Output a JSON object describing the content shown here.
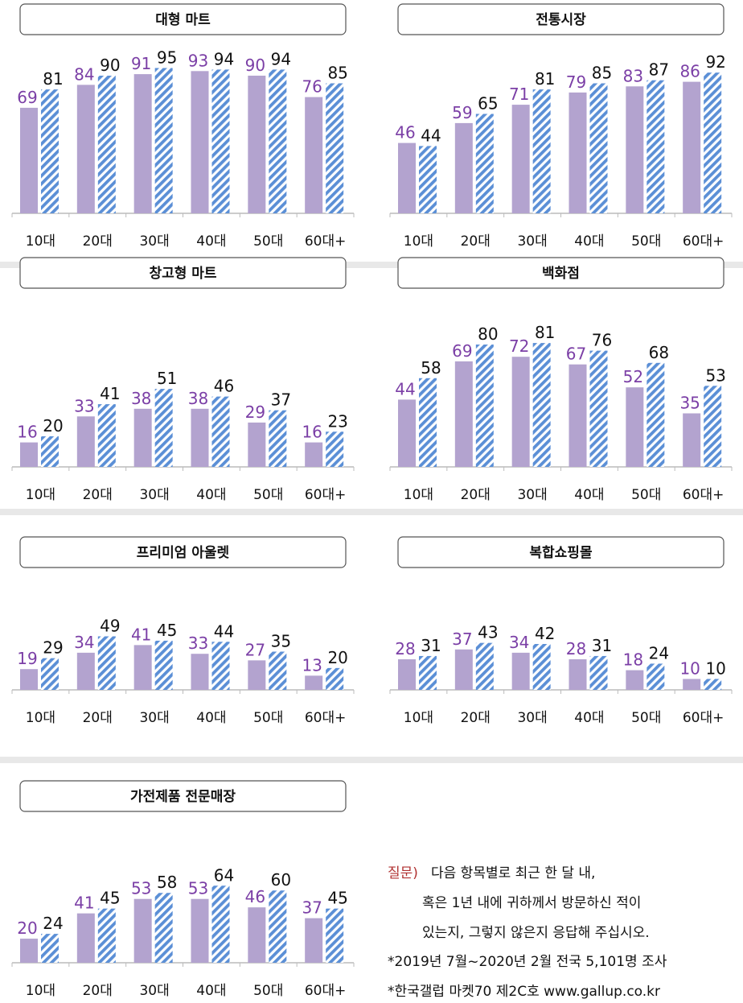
{
  "chart_data": [
    {
      "type": "bar",
      "title": "대형 마트",
      "categories": [
        "10대",
        "20대",
        "30대",
        "40대",
        "50대",
        "60대+"
      ],
      "ylim": [
        0,
        100
      ],
      "series": [
        {
          "color": "#b3a3cf",
          "label_color": "#7b3fa6",
          "values": [
            69,
            84,
            91,
            93,
            90,
            76
          ]
        },
        {
          "color": "#5b8fd6",
          "hatched": true,
          "label_color": "#111111",
          "values": [
            81,
            90,
            95,
            94,
            94,
            85
          ]
        }
      ]
    },
    {
      "type": "bar",
      "title": "전통시장",
      "categories": [
        "10대",
        "20대",
        "30대",
        "40대",
        "50대",
        "60대+"
      ],
      "ylim": [
        0,
        100
      ],
      "series": [
        {
          "color": "#b3a3cf",
          "label_color": "#7b3fa6",
          "values": [
            46,
            59,
            71,
            79,
            83,
            86
          ]
        },
        {
          "color": "#5b8fd6",
          "hatched": true,
          "label_color": "#111111",
          "values": [
            44,
            65,
            81,
            85,
            87,
            92
          ]
        }
      ]
    },
    {
      "type": "bar",
      "title": "창고형 마트",
      "categories": [
        "10대",
        "20대",
        "30대",
        "40대",
        "50대",
        "60대+"
      ],
      "ylim": [
        0,
        100
      ],
      "series": [
        {
          "color": "#b3a3cf",
          "label_color": "#7b3fa6",
          "values": [
            16,
            33,
            38,
            38,
            29,
            16
          ]
        },
        {
          "color": "#5b8fd6",
          "hatched": true,
          "label_color": "#111111",
          "values": [
            20,
            41,
            51,
            46,
            37,
            23
          ]
        }
      ]
    },
    {
      "type": "bar",
      "title": "백화점",
      "categories": [
        "10대",
        "20대",
        "30대",
        "40대",
        "50대",
        "60대+"
      ],
      "ylim": [
        0,
        100
      ],
      "series": [
        {
          "color": "#b3a3cf",
          "label_color": "#7b3fa6",
          "values": [
            44,
            69,
            72,
            67,
            52,
            35
          ]
        },
        {
          "color": "#5b8fd6",
          "hatched": true,
          "label_color": "#111111",
          "values": [
            58,
            80,
            81,
            76,
            68,
            53
          ]
        }
      ]
    },
    {
      "type": "bar",
      "title": "프리미엄 아울렛",
      "categories": [
        "10대",
        "20대",
        "30대",
        "40대",
        "50대",
        "60대+"
      ],
      "ylim": [
        0,
        140
      ],
      "series": [
        {
          "color": "#b3a3cf",
          "label_color": "#7b3fa6",
          "values": [
            19,
            34,
            41,
            33,
            27,
            13
          ]
        },
        {
          "color": "#5b8fd6",
          "hatched": true,
          "label_color": "#111111",
          "values": [
            29,
            49,
            45,
            44,
            35,
            20
          ]
        }
      ]
    },
    {
      "type": "bar",
      "title": "복합쇼핑몰",
      "categories": [
        "10대",
        "20대",
        "30대",
        "40대",
        "50대",
        "60대+"
      ],
      "ylim": [
        0,
        140
      ],
      "series": [
        {
          "color": "#b3a3cf",
          "label_color": "#7b3fa6",
          "values": [
            28,
            37,
            34,
            28,
            18,
            10
          ]
        },
        {
          "color": "#5b8fd6",
          "hatched": true,
          "label_color": "#111111",
          "values": [
            31,
            43,
            42,
            31,
            24,
            10
          ]
        }
      ]
    },
    {
      "type": "bar",
      "title": "가전제품 전문매장",
      "categories": [
        "10대",
        "20대",
        "30대",
        "40대",
        "50대",
        "60대+"
      ],
      "ylim": [
        0,
        127
      ],
      "series": [
        {
          "color": "#b3a3cf",
          "label_color": "#7b3fa6",
          "values": [
            20,
            41,
            53,
            53,
            46,
            37
          ]
        },
        {
          "color": "#5b8fd6",
          "hatched": true,
          "label_color": "#111111",
          "values": [
            24,
            45,
            58,
            64,
            60,
            45
          ]
        }
      ]
    }
  ],
  "notes": {
    "question_label": "질문)",
    "question_lines": [
      "다음 항목별로 최근 한 달 내,",
      "혹은 1년 내에 귀하께서 방문하신 적이",
      "있는지, 그렇지 않은지 응답해 주십시오."
    ],
    "footnotes": [
      "*2019년 7월~2020년 2월 전국 5,101명 조사",
      "*한국갤럽 마켓70 제2C호 www.gallup.co.kr"
    ]
  }
}
